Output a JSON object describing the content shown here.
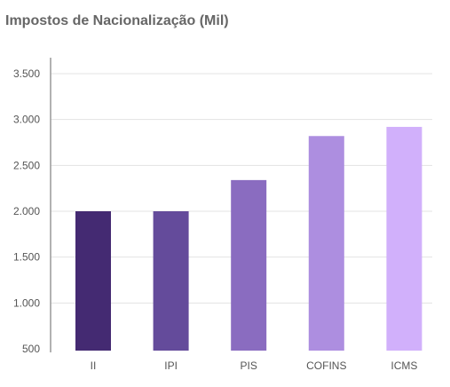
{
  "chart_data": {
    "type": "bar",
    "title": "Impostos de Nacionalização (Mil)",
    "categories": [
      "II",
      "IPI",
      "PIS",
      "COFINS",
      "ICMS"
    ],
    "values": [
      2000,
      2000,
      2340,
      2820,
      2920
    ],
    "ylim": [
      500,
      3500
    ],
    "yticks": [
      500,
      1000,
      1500,
      2000,
      2500,
      3000,
      3500
    ],
    "ytick_labels": [
      "500",
      "1.000",
      "1.500",
      "2.000",
      "2.500",
      "3.000",
      "3.500"
    ],
    "grid": true,
    "legend": "none",
    "colors": [
      "#442a72",
      "#644b9b",
      "#8a6cc0",
      "#ad8ee0",
      "#d1b0fb"
    ]
  }
}
